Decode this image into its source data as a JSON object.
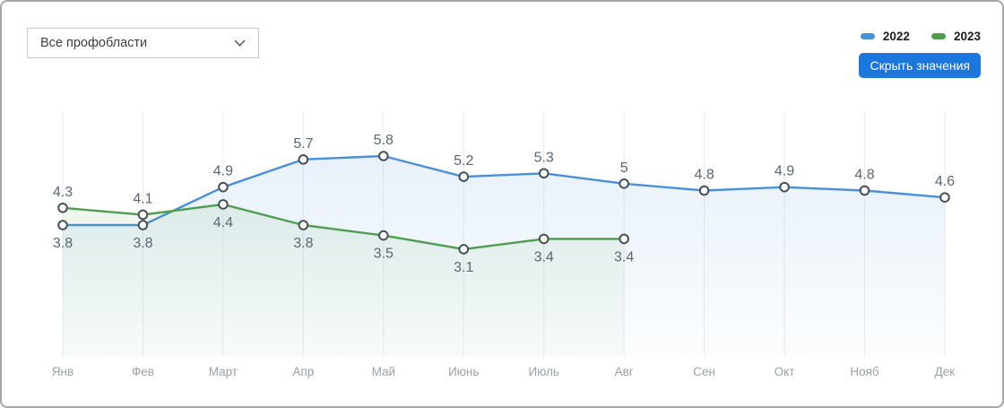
{
  "filter": {
    "selected": "Все профобласти"
  },
  "toolbar": {
    "hide_values_label": "Скрыть значения"
  },
  "chart_data": {
    "type": "line",
    "categories": [
      "Янв",
      "Фев",
      "Март",
      "Апр",
      "Май",
      "Июнь",
      "Июль",
      "Авг",
      "Сен",
      "Окт",
      "Нояб",
      "Дек"
    ],
    "series": [
      {
        "name": "2022",
        "color": "#4a90d9",
        "values": [
          3.8,
          3.8,
          4.9,
          5.7,
          5.8,
          5.2,
          5.3,
          5,
          4.8,
          4.9,
          4.8,
          4.6
        ],
        "label_positions": [
          "below",
          "below",
          "above",
          "above",
          "above",
          "above",
          "above",
          "above",
          "above",
          "above",
          "above",
          "above"
        ]
      },
      {
        "name": "2023",
        "color": "#4f9e4f",
        "values": [
          4.3,
          4.1,
          4.4,
          3.8,
          3.5,
          3.1,
          3.4,
          3.4
        ],
        "label_positions": [
          "above",
          "above",
          "below",
          "below",
          "below",
          "below",
          "below",
          "below"
        ]
      }
    ],
    "ylim": [
      0,
      7.1
    ],
    "grid": "vertical",
    "legend_position": "top-right",
    "data_labels_shown": true,
    "markers": {
      "fill": "#ffffff",
      "stroke": "#485059"
    },
    "label_color": "#5b6671",
    "axis_label_color": "#9aa1a7",
    "gridline_color": "#ececec"
  }
}
